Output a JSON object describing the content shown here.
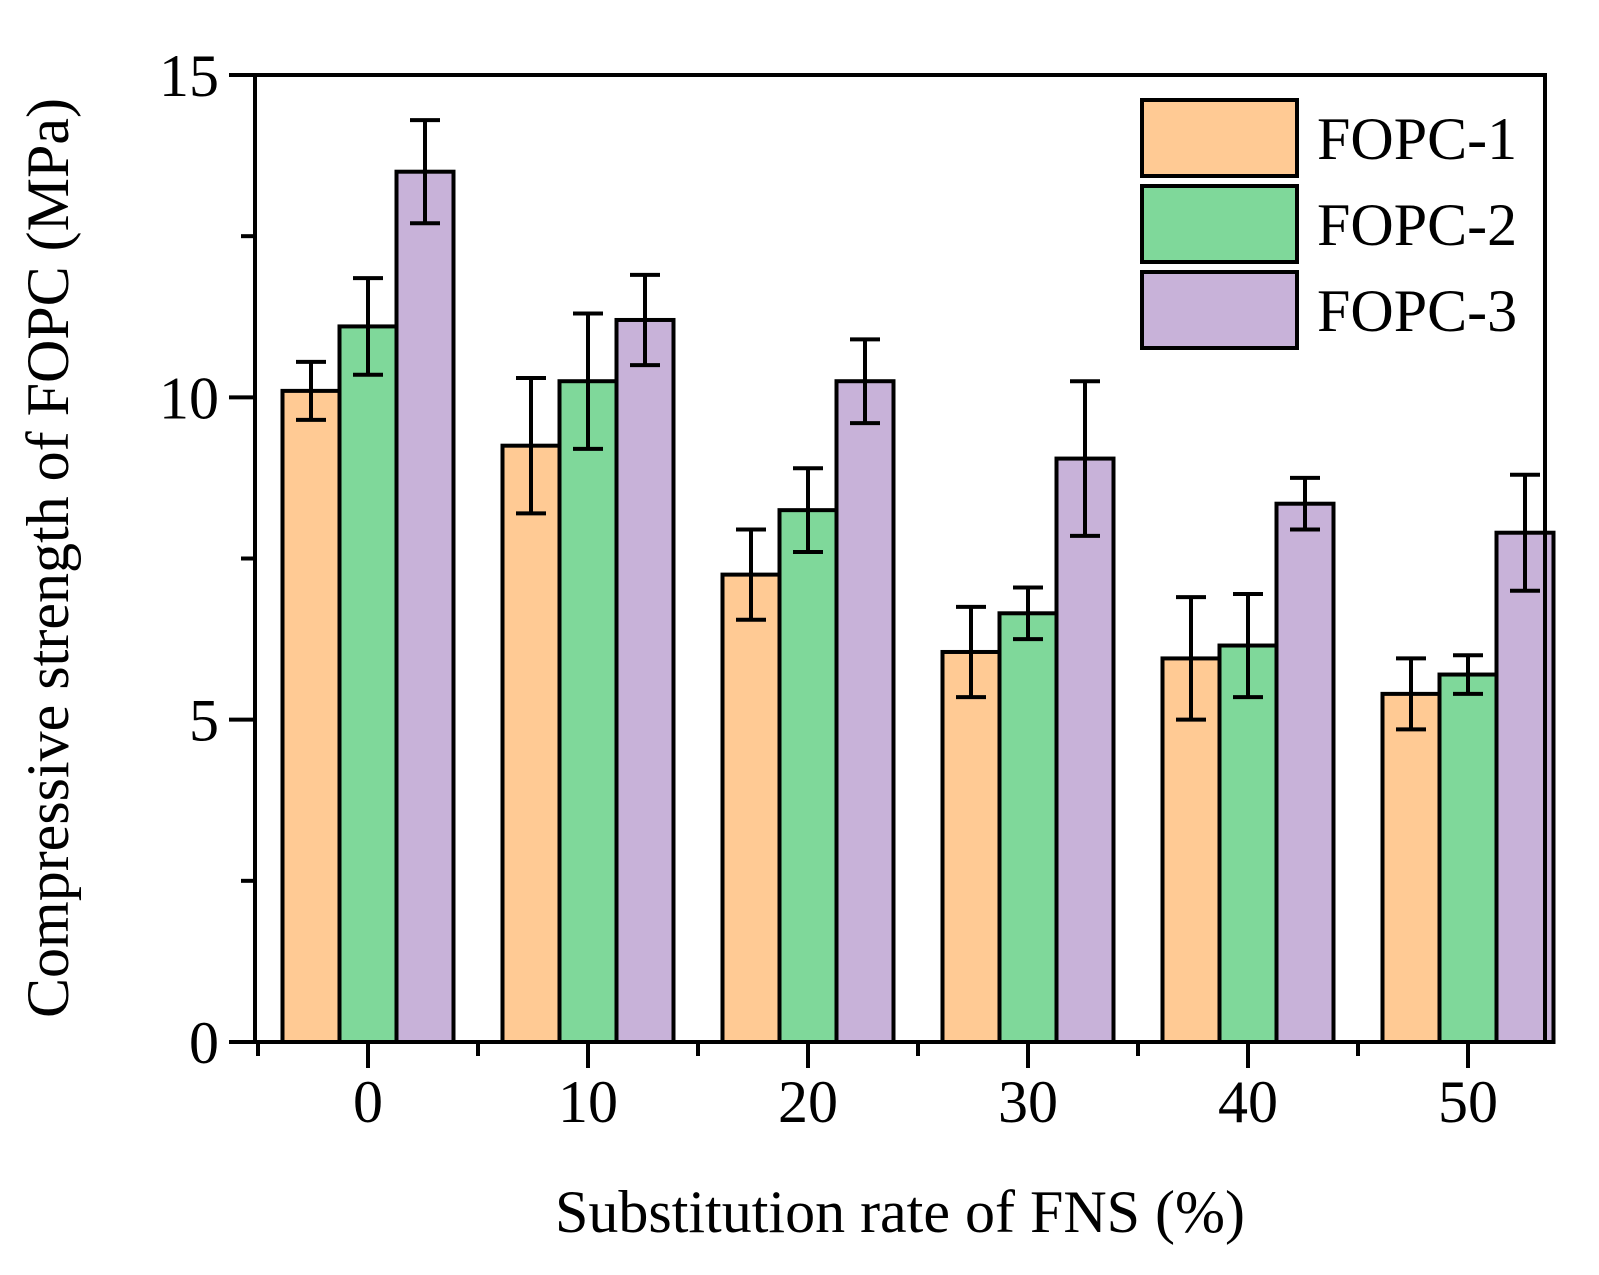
{
  "chart_data": {
    "type": "bar",
    "title": "",
    "xlabel": "Substitution rate of FNS (%)",
    "ylabel": "Compressive strength of  FOPC (MPa)",
    "categories": [
      "0",
      "10",
      "20",
      "30",
      "40",
      "50"
    ],
    "ylim": [
      0,
      15
    ],
    "yticks": [
      0,
      5,
      10,
      15
    ],
    "ytick_labels": [
      "0",
      "5",
      "10",
      "15"
    ],
    "grid": false,
    "legend_position": "top-right",
    "series": [
      {
        "name": "FOPC-1",
        "color": "#FFCA94",
        "values": [
          10.1,
          9.25,
          7.25,
          6.05,
          5.95,
          5.4
        ],
        "errors": [
          0.45,
          1.05,
          0.7,
          0.7,
          0.95,
          0.55
        ]
      },
      {
        "name": "FOPC-2",
        "color": "#7FD89A",
        "values": [
          11.1,
          10.25,
          8.25,
          6.65,
          6.15,
          5.7
        ],
        "errors": [
          0.75,
          1.05,
          0.65,
          0.4,
          0.8,
          0.3
        ]
      },
      {
        "name": "FOPC-3",
        "color": "#C8B2D9",
        "values": [
          13.5,
          11.2,
          10.25,
          9.05,
          8.35,
          7.9
        ],
        "errors": [
          0.8,
          0.7,
          0.65,
          1.2,
          0.4,
          0.9
        ]
      }
    ]
  }
}
